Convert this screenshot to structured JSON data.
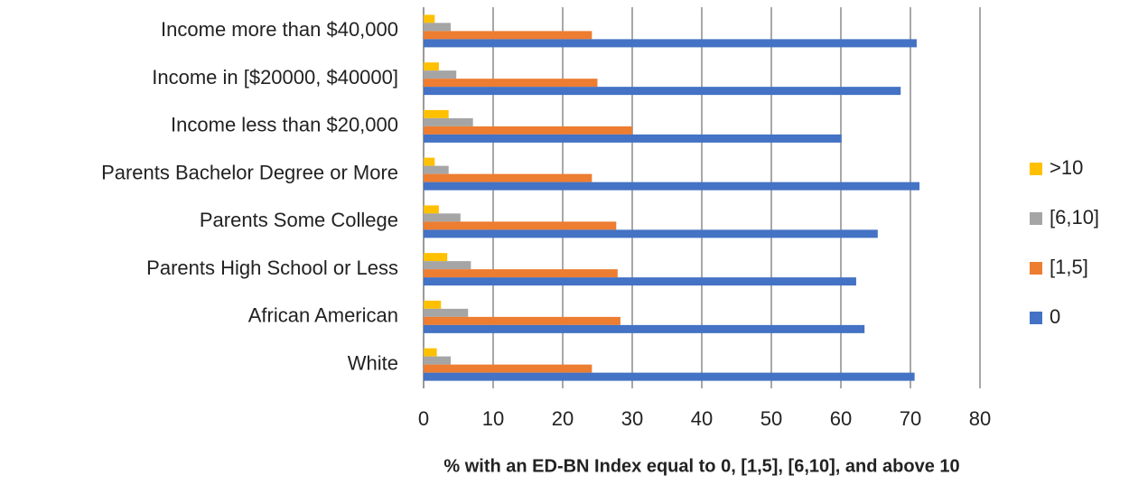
{
  "chart_data": {
    "type": "bar",
    "orientation": "horizontal",
    "x_label": "% with an ED-BN Index equal to 0, [1,5], [6,10], and above 10",
    "categories": [
      "Income more than $40,000",
      "Income in [$20000, $40000]",
      "Income less than $20,000",
      "Parents Bachelor Degree or More",
      "Parents Some College",
      "Parents High School or Less",
      "African American",
      "White"
    ],
    "series": [
      {
        "name": ">10",
        "color": "#ffc000",
        "values": [
          1.6,
          2.2,
          3.6,
          1.6,
          2.2,
          3.4,
          2.5,
          1.9
        ]
      },
      {
        "name": "[6,10]",
        "color": "#a5a5a5",
        "values": [
          3.9,
          4.7,
          7.1,
          3.6,
          5.3,
          6.8,
          6.4,
          3.9
        ]
      },
      {
        "name": "[1,5]",
        "color": "#ed7d31",
        "values": [
          24.2,
          25,
          30,
          24.2,
          27.7,
          27.9,
          28.3,
          24.2
        ]
      },
      {
        "name": "0",
        "color": "#4472c4",
        "values": [
          70.9,
          68.6,
          60.1,
          71.3,
          65.3,
          62.2,
          63.4,
          70.6
        ]
      }
    ],
    "xlim": [
      0,
      80
    ],
    "xticks": [
      0,
      10,
      20,
      30,
      40,
      50,
      60,
      70,
      80
    ],
    "grid": true,
    "legend": "right"
  }
}
